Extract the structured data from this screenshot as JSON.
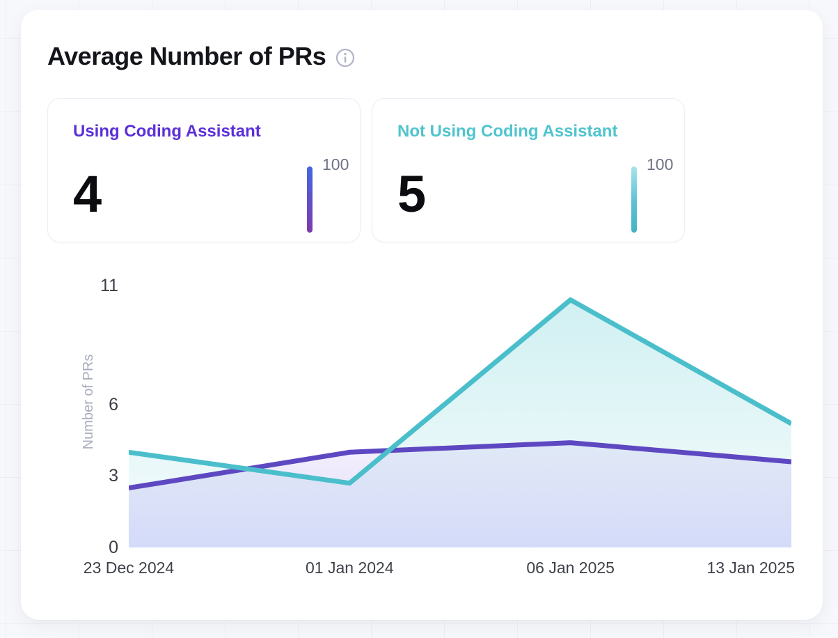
{
  "header": {
    "title": "Average Number of PRs"
  },
  "stat_cards": [
    {
      "label": "Using Coding Assistant",
      "label_color": "#5b2fd9",
      "value": "4",
      "gauge_value": "100",
      "gauge_gradient": [
        "#4566e4",
        "#7c3aad"
      ]
    },
    {
      "label": "Not Using Coding Assistant",
      "label_color": "#4fc4cd",
      "value": "5",
      "gauge_value": "100",
      "gauge_gradient": [
        "#a7e4e9",
        "#46b3c1"
      ]
    }
  ],
  "chart_data": {
    "type": "area",
    "x": [
      "23 Dec 2024",
      "01 Jan 2024",
      "06 Jan 2025",
      "13 Jan 2025"
    ],
    "series": [
      {
        "name": "Using Coding Assistant",
        "color": "#5e48c2",
        "values": [
          2.5,
          4.0,
          4.4,
          3.6
        ],
        "fill_stops": [
          {
            "color": "#9a6ce6",
            "opacity": 0.1
          },
          {
            "color": "#6e7cf0",
            "opacity": 0.26
          }
        ]
      },
      {
        "name": "Not Using Coding Assistant",
        "color": "#4abfcb",
        "values": [
          4.0,
          2.7,
          10.4,
          5.2
        ],
        "fill_stops": [
          {
            "color": "#4ec4cc",
            "opacity": 0.26
          },
          {
            "color": "#4ec4cc",
            "opacity": 0.05
          }
        ]
      }
    ],
    "title": "Average Number of PRs",
    "xlabel": "",
    "ylabel": "Number of PRs",
    "yticks": [
      0,
      3,
      6,
      11
    ],
    "ylim": [
      0,
      11.3
    ],
    "grid": false,
    "legend": "none"
  },
  "colors": {
    "page_bg": "#f7f8fb",
    "card_bg": "#ffffff",
    "title_text": "#14151a",
    "tick_text": "#3b3e46",
    "axis_title_text": "#a8adbb",
    "gauge_value_text": "#6d7384",
    "info_icon": "#b2b6c9"
  }
}
